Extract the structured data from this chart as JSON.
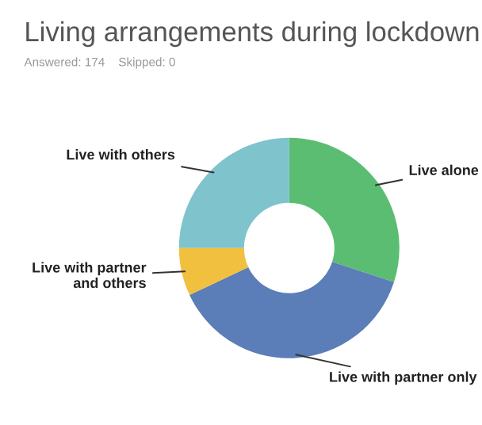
{
  "chart_data": {
    "type": "donut",
    "title": "Living arrangements during lockdown",
    "subtitle": "Answered: 174    Skipped: 0",
    "categories": [
      "Live alone",
      "Live with partner only",
      "Live with partner and others",
      "Live with others"
    ],
    "values": [
      30,
      38,
      7,
      25
    ],
    "colors": [
      "#5bbd72",
      "#5b7db8",
      "#f0c03e",
      "#7fc3cc"
    ],
    "legend": false
  }
}
